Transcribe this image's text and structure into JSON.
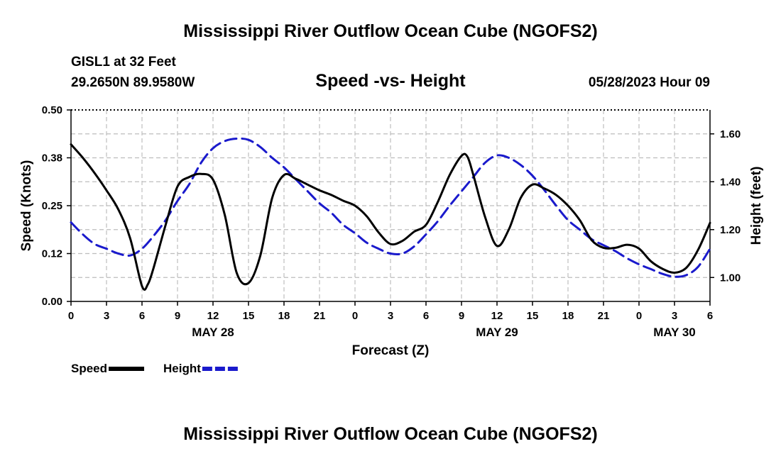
{
  "header": {
    "title": "Mississippi River Outflow Ocean Cube (NGOFS2)",
    "station": "GISL1 at 32 Feet",
    "coords": "29.2650N  89.9580W",
    "subtitle": "Speed -vs- Height",
    "datetime": "05/28/2023 Hour 09"
  },
  "footer": {
    "title": "Mississippi River Outflow Ocean Cube (NGOFS2)"
  },
  "chart_data": {
    "type": "line",
    "title": "Speed -vs- Height",
    "xlabel": "Forecast (Z)",
    "ylabel_left": "Speed (Knots)",
    "ylabel_right": "Height (feet)",
    "x_range": [
      0,
      54
    ],
    "x_ticks": [
      0,
      3,
      6,
      9,
      12,
      15,
      18,
      21,
      24,
      27,
      30,
      33,
      36,
      39,
      42,
      45,
      48,
      51,
      54
    ],
    "x_tick_labels": [
      "0",
      "3",
      "6",
      "9",
      "12",
      "15",
      "18",
      "21",
      "0",
      "3",
      "6",
      "9",
      "12",
      "15",
      "18",
      "21",
      "0",
      "3",
      "6"
    ],
    "day_labels": [
      {
        "x": 12,
        "label": "MAY 28"
      },
      {
        "x": 36,
        "label": "MAY 29"
      },
      {
        "x": 51,
        "label": "MAY 30"
      }
    ],
    "y_left_range": [
      0,
      0.5
    ],
    "y_left_ticks": [
      0,
      0.125,
      0.25,
      0.375,
      0.5
    ],
    "y_left_tick_labels": [
      "0.00",
      "0.12",
      "0.25",
      "0.38",
      "0.50"
    ],
    "y_right_range": [
      0.9,
      1.7
    ],
    "y_right_ticks": [
      1.0,
      1.2,
      1.4,
      1.6
    ],
    "y_right_tick_labels": [
      "1.00",
      "1.20",
      "1.40",
      "1.60"
    ],
    "grid": true,
    "legend": [
      {
        "name": "Speed",
        "color": "#000000",
        "style": "solid"
      },
      {
        "name": "Height",
        "color": "#1a1acc",
        "style": "dashed"
      }
    ],
    "series": [
      {
        "name": "Speed",
        "axis": "left",
        "color": "#000000",
        "points": [
          [
            0,
            0.41
          ],
          [
            1,
            0.375
          ],
          [
            2,
            0.335
          ],
          [
            3,
            0.29
          ],
          [
            4,
            0.24
          ],
          [
            5,
            0.165
          ],
          [
            6,
            0.04
          ],
          [
            6.5,
            0.045
          ],
          [
            7,
            0.09
          ],
          [
            8,
            0.2
          ],
          [
            9,
            0.3
          ],
          [
            10,
            0.325
          ],
          [
            11,
            0.333
          ],
          [
            12,
            0.318
          ],
          [
            13,
            0.225
          ],
          [
            14,
            0.075
          ],
          [
            15,
            0.048
          ],
          [
            16,
            0.12
          ],
          [
            17,
            0.27
          ],
          [
            18,
            0.33
          ],
          [
            19,
            0.32
          ],
          [
            20,
            0.305
          ],
          [
            21,
            0.29
          ],
          [
            22,
            0.278
          ],
          [
            23,
            0.263
          ],
          [
            24,
            0.25
          ],
          [
            25,
            0.222
          ],
          [
            26,
            0.18
          ],
          [
            27,
            0.15
          ],
          [
            28,
            0.158
          ],
          [
            29,
            0.182
          ],
          [
            30,
            0.2
          ],
          [
            31,
            0.26
          ],
          [
            32,
            0.33
          ],
          [
            33,
            0.38
          ],
          [
            33.5,
            0.378
          ],
          [
            34,
            0.33
          ],
          [
            35,
            0.22
          ],
          [
            36,
            0.145
          ],
          [
            37,
            0.188
          ],
          [
            38,
            0.27
          ],
          [
            39,
            0.305
          ],
          [
            40,
            0.295
          ],
          [
            41,
            0.278
          ],
          [
            42,
            0.25
          ],
          [
            43,
            0.212
          ],
          [
            44,
            0.16
          ],
          [
            45,
            0.14
          ],
          [
            46,
            0.14
          ],
          [
            47,
            0.148
          ],
          [
            48,
            0.138
          ],
          [
            49,
            0.105
          ],
          [
            50,
            0.085
          ],
          [
            51,
            0.075
          ],
          [
            52,
            0.088
          ],
          [
            53,
            0.135
          ],
          [
            54,
            0.205
          ]
        ]
      },
      {
        "name": "Height",
        "axis": "right",
        "color": "#1a1acc",
        "points": [
          [
            0,
            1.23
          ],
          [
            1,
            1.18
          ],
          [
            2,
            1.14
          ],
          [
            3,
            1.12
          ],
          [
            4,
            1.1
          ],
          [
            5,
            1.092
          ],
          [
            6,
            1.12
          ],
          [
            7,
            1.175
          ],
          [
            8,
            1.24
          ],
          [
            9,
            1.32
          ],
          [
            10,
            1.39
          ],
          [
            11,
            1.48
          ],
          [
            12,
            1.54
          ],
          [
            13,
            1.57
          ],
          [
            14,
            1.58
          ],
          [
            15,
            1.575
          ],
          [
            16,
            1.545
          ],
          [
            17,
            1.5
          ],
          [
            18,
            1.46
          ],
          [
            19,
            1.41
          ],
          [
            20,
            1.36
          ],
          [
            21,
            1.31
          ],
          [
            22,
            1.27
          ],
          [
            23,
            1.22
          ],
          [
            24,
            1.185
          ],
          [
            25,
            1.145
          ],
          [
            26,
            1.12
          ],
          [
            27,
            1.1
          ],
          [
            28,
            1.1
          ],
          [
            29,
            1.13
          ],
          [
            30,
            1.18
          ],
          [
            31,
            1.235
          ],
          [
            32,
            1.3
          ],
          [
            33,
            1.36
          ],
          [
            34,
            1.42
          ],
          [
            35,
            1.48
          ],
          [
            36,
            1.51
          ],
          [
            37,
            1.5
          ],
          [
            38,
            1.47
          ],
          [
            39,
            1.425
          ],
          [
            40,
            1.365
          ],
          [
            41,
            1.3
          ],
          [
            42,
            1.24
          ],
          [
            43,
            1.2
          ],
          [
            44,
            1.16
          ],
          [
            45,
            1.135
          ],
          [
            46,
            1.11
          ],
          [
            47,
            1.08
          ],
          [
            48,
            1.055
          ],
          [
            49,
            1.035
          ],
          [
            50,
            1.015
          ],
          [
            51,
            1.003
          ],
          [
            52,
            1.01
          ],
          [
            53,
            1.045
          ],
          [
            54,
            1.12
          ]
        ]
      }
    ]
  }
}
